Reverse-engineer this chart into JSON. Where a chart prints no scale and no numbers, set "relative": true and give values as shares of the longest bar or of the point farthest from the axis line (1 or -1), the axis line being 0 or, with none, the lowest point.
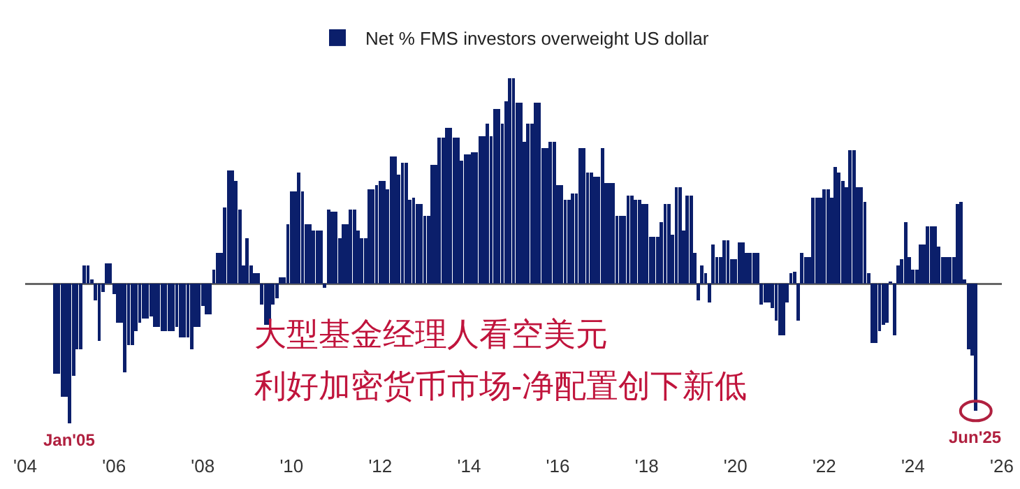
{
  "chart_data": {
    "type": "bar",
    "relative": true,
    "legend": "top",
    "x": [
      "2004-09",
      "2004-10",
      "2004-11",
      "2004-12",
      "2005-01",
      "2005-02",
      "2005-03",
      "2005-04",
      "2005-05",
      "2005-06",
      "2005-07",
      "2005-08",
      "2005-09",
      "2005-10",
      "2005-11",
      "2005-12",
      "2006-01",
      "2006-02",
      "2006-03",
      "2006-04",
      "2006-05",
      "2006-06",
      "2006-07",
      "2006-08",
      "2006-09",
      "2006-10",
      "2006-11",
      "2006-12",
      "2007-01",
      "2007-02",
      "2007-03",
      "2007-04",
      "2007-05",
      "2007-06",
      "2007-07",
      "2007-08",
      "2007-09",
      "2007-10",
      "2007-11",
      "2007-12",
      "2008-01",
      "2008-02",
      "2008-03",
      "2008-04",
      "2008-05",
      "2008-06",
      "2008-07",
      "2008-08",
      "2008-09",
      "2008-10",
      "2008-11",
      "2008-12",
      "2009-01",
      "2009-02",
      "2009-03",
      "2009-04",
      "2009-05",
      "2009-06",
      "2009-07",
      "2009-08",
      "2009-09",
      "2009-10",
      "2009-11",
      "2009-12",
      "2010-01",
      "2010-02",
      "2010-03",
      "2010-04",
      "2010-05",
      "2010-06",
      "2010-07",
      "2010-08",
      "2010-09",
      "2010-10",
      "2010-11",
      "2010-12",
      "2011-01",
      "2011-02",
      "2011-03",
      "2011-04",
      "2011-05",
      "2011-06",
      "2011-07",
      "2011-08",
      "2011-09",
      "2011-10",
      "2011-11",
      "2011-12",
      "2012-01",
      "2012-02",
      "2012-03",
      "2012-04",
      "2012-05",
      "2012-06",
      "2012-07",
      "2012-08",
      "2012-09",
      "2012-10",
      "2012-11",
      "2012-12",
      "2013-01",
      "2013-02",
      "2013-03",
      "2013-04",
      "2013-05",
      "2013-06",
      "2013-07",
      "2013-08",
      "2013-09",
      "2013-10",
      "2013-11",
      "2013-12",
      "2014-01",
      "2014-02",
      "2014-03",
      "2014-04",
      "2014-05",
      "2014-06",
      "2014-07",
      "2014-08",
      "2014-09",
      "2014-10",
      "2014-11",
      "2014-12",
      "2015-01",
      "2015-02",
      "2015-03",
      "2015-04",
      "2015-05",
      "2015-06",
      "2015-07",
      "2015-08",
      "2015-09",
      "2015-10",
      "2015-11",
      "2015-12",
      "2016-01",
      "2016-02",
      "2016-03",
      "2016-04",
      "2016-05",
      "2016-06",
      "2016-07",
      "2016-08",
      "2016-09",
      "2016-10",
      "2016-11",
      "2016-12",
      "2017-01",
      "2017-02",
      "2017-03",
      "2017-04",
      "2017-05",
      "2017-06",
      "2017-07",
      "2017-08",
      "2017-09",
      "2017-10",
      "2017-11",
      "2017-12",
      "2018-01",
      "2018-02",
      "2018-03",
      "2018-04",
      "2018-05",
      "2018-06",
      "2018-07",
      "2018-08",
      "2018-09",
      "2018-10",
      "2018-11",
      "2018-12",
      "2019-01",
      "2019-02",
      "2019-03",
      "2019-04",
      "2019-05",
      "2019-06",
      "2019-07",
      "2019-08",
      "2019-09",
      "2019-10",
      "2019-11",
      "2019-12",
      "2020-01",
      "2020-02",
      "2020-03",
      "2020-04",
      "2020-05",
      "2020-06",
      "2020-07",
      "2020-08",
      "2020-09",
      "2020-10",
      "2020-11",
      "2020-12",
      "2021-01",
      "2021-02",
      "2021-03",
      "2021-04",
      "2021-05",
      "2021-06",
      "2021-07",
      "2021-08",
      "2021-09",
      "2021-10",
      "2021-11",
      "2021-12",
      "2022-01",
      "2022-02",
      "2022-03",
      "2022-04",
      "2022-05",
      "2022-06",
      "2022-07",
      "2022-08",
      "2022-09",
      "2022-10",
      "2022-11",
      "2022-12",
      "2023-01",
      "2023-02",
      "2023-03",
      "2023-04",
      "2023-05",
      "2023-06",
      "2023-07",
      "2023-08",
      "2023-09",
      "2023-10",
      "2023-11",
      "2023-12",
      "2024-01",
      "2024-02",
      "2024-03",
      "2024-04",
      "2024-05",
      "2024-06",
      "2024-07",
      "2024-08",
      "2024-09",
      "2024-10",
      "2024-11",
      "2024-12",
      "2025-01",
      "2025-02",
      "2025-03",
      "2025-04",
      "2025-05",
      "2025-06"
    ],
    "series": [
      {
        "name": "Net % FMS investors overweight US dollar",
        "color": "#0b1f6b",
        "values": [
          -0.44,
          -0.44,
          -0.55,
          -0.55,
          -0.68,
          -0.45,
          -0.32,
          -0.32,
          0.09,
          0.09,
          0.02,
          -0.08,
          -0.28,
          -0.04,
          0.1,
          0.1,
          -0.05,
          -0.19,
          -0.19,
          -0.43,
          -0.3,
          -0.3,
          -0.23,
          -0.19,
          -0.17,
          -0.17,
          -0.16,
          -0.21,
          -0.21,
          -0.23,
          -0.23,
          -0.23,
          -0.23,
          -0.21,
          -0.26,
          -0.26,
          -0.26,
          -0.32,
          -0.21,
          -0.21,
          -0.11,
          -0.15,
          -0.15,
          0.07,
          0.15,
          0.15,
          0.37,
          0.55,
          0.55,
          0.5,
          0.36,
          0.09,
          0.22,
          0.09,
          0.05,
          0.05,
          -0.1,
          -0.2,
          -0.2,
          -0.1,
          -0.07,
          0.03,
          0.03,
          0.29,
          0.45,
          0.45,
          0.54,
          0.45,
          0.29,
          0.29,
          0.26,
          0.26,
          0.26,
          -0.02,
          0.36,
          0.35,
          0.35,
          0.22,
          0.29,
          0.29,
          0.36,
          0.36,
          0.26,
          0.22,
          0.22,
          0.46,
          0.46,
          0.48,
          0.5,
          0.5,
          0.46,
          0.62,
          0.62,
          0.53,
          0.59,
          0.59,
          0.41,
          0.42,
          0.39,
          0.39,
          0.33,
          0.33,
          0.58,
          0.58,
          0.71,
          0.71,
          0.76,
          0.76,
          0.71,
          0.71,
          0.6,
          0.63,
          0.63,
          0.64,
          0.64,
          0.72,
          0.72,
          0.78,
          0.72,
          0.85,
          0.85,
          0.78,
          0.89,
          1,
          1,
          0.88,
          0.88,
          0.69,
          0.78,
          0.78,
          0.88,
          0.88,
          0.66,
          0.66,
          0.69,
          0.69,
          0.48,
          0.48,
          0.41,
          0.41,
          0.44,
          0.44,
          0.66,
          0.66,
          0.54,
          0.54,
          0.52,
          0.52,
          0.66,
          0.49,
          0.49,
          0.49,
          0.33,
          0.33,
          0.33,
          0.43,
          0.43,
          0.41,
          0.41,
          0.39,
          0.39,
          0.23,
          0.23,
          0.23,
          0.3,
          0.39,
          0.39,
          0.24,
          0.47,
          0.47,
          0.26,
          0.43,
          0.43,
          0.15,
          -0.08,
          0.09,
          0.05,
          -0.09,
          0.19,
          0.13,
          0.13,
          0.21,
          0.21,
          0.12,
          0.12,
          0.2,
          0.2,
          0.15,
          0.15,
          0.15,
          0.15,
          -0.1,
          -0.09,
          -0.09,
          -0.12,
          -0.18,
          -0.25,
          -0.25,
          -0.09,
          0.05,
          0.06,
          -0.18,
          0.15,
          0.13,
          0.13,
          0.42,
          0.42,
          0.42,
          0.46,
          0.46,
          0.42,
          0.57,
          0.54,
          0.5,
          0.47,
          0.65,
          0.65,
          0.47,
          0.47,
          0.4,
          0.05,
          -0.29,
          -0.29,
          -0.23,
          -0.2,
          -0.19,
          0.01,
          -0.25,
          0.09,
          0.12,
          0.3,
          0.13,
          0.07,
          0.07,
          0.19,
          0.19,
          0.28,
          0.28,
          0.28,
          0.18,
          0.13,
          0.13,
          0.13,
          0.13,
          0.39,
          0.4,
          0.02,
          -0.32,
          -0.35,
          -0.62
        ]
      }
    ],
    "xlim": [
      "2004-01",
      "2026-01"
    ],
    "xticks": [
      {
        "value": "2004",
        "label": "'04"
      },
      {
        "value": "2006",
        "label": "'06"
      },
      {
        "value": "2008",
        "label": "'08"
      },
      {
        "value": "2010",
        "label": "'10"
      },
      {
        "value": "2012",
        "label": "'12"
      },
      {
        "value": "2014",
        "label": "'14"
      },
      {
        "value": "2016",
        "label": "'16"
      },
      {
        "value": "2018",
        "label": "'18"
      },
      {
        "value": "2020",
        "label": "'20"
      },
      {
        "value": "2022",
        "label": "'22"
      },
      {
        "value": "2024",
        "label": "'24"
      },
      {
        "value": "2026",
        "label": "'26"
      }
    ],
    "annotations": [
      {
        "text": "Jan'05",
        "x": "2005-01",
        "y": -0.68
      },
      {
        "text": "Jun'25",
        "x": "2025-06",
        "y": -0.62
      },
      "大型基金经理人看空美元",
      "利好加密货币市场-净配置创下新低"
    ]
  }
}
